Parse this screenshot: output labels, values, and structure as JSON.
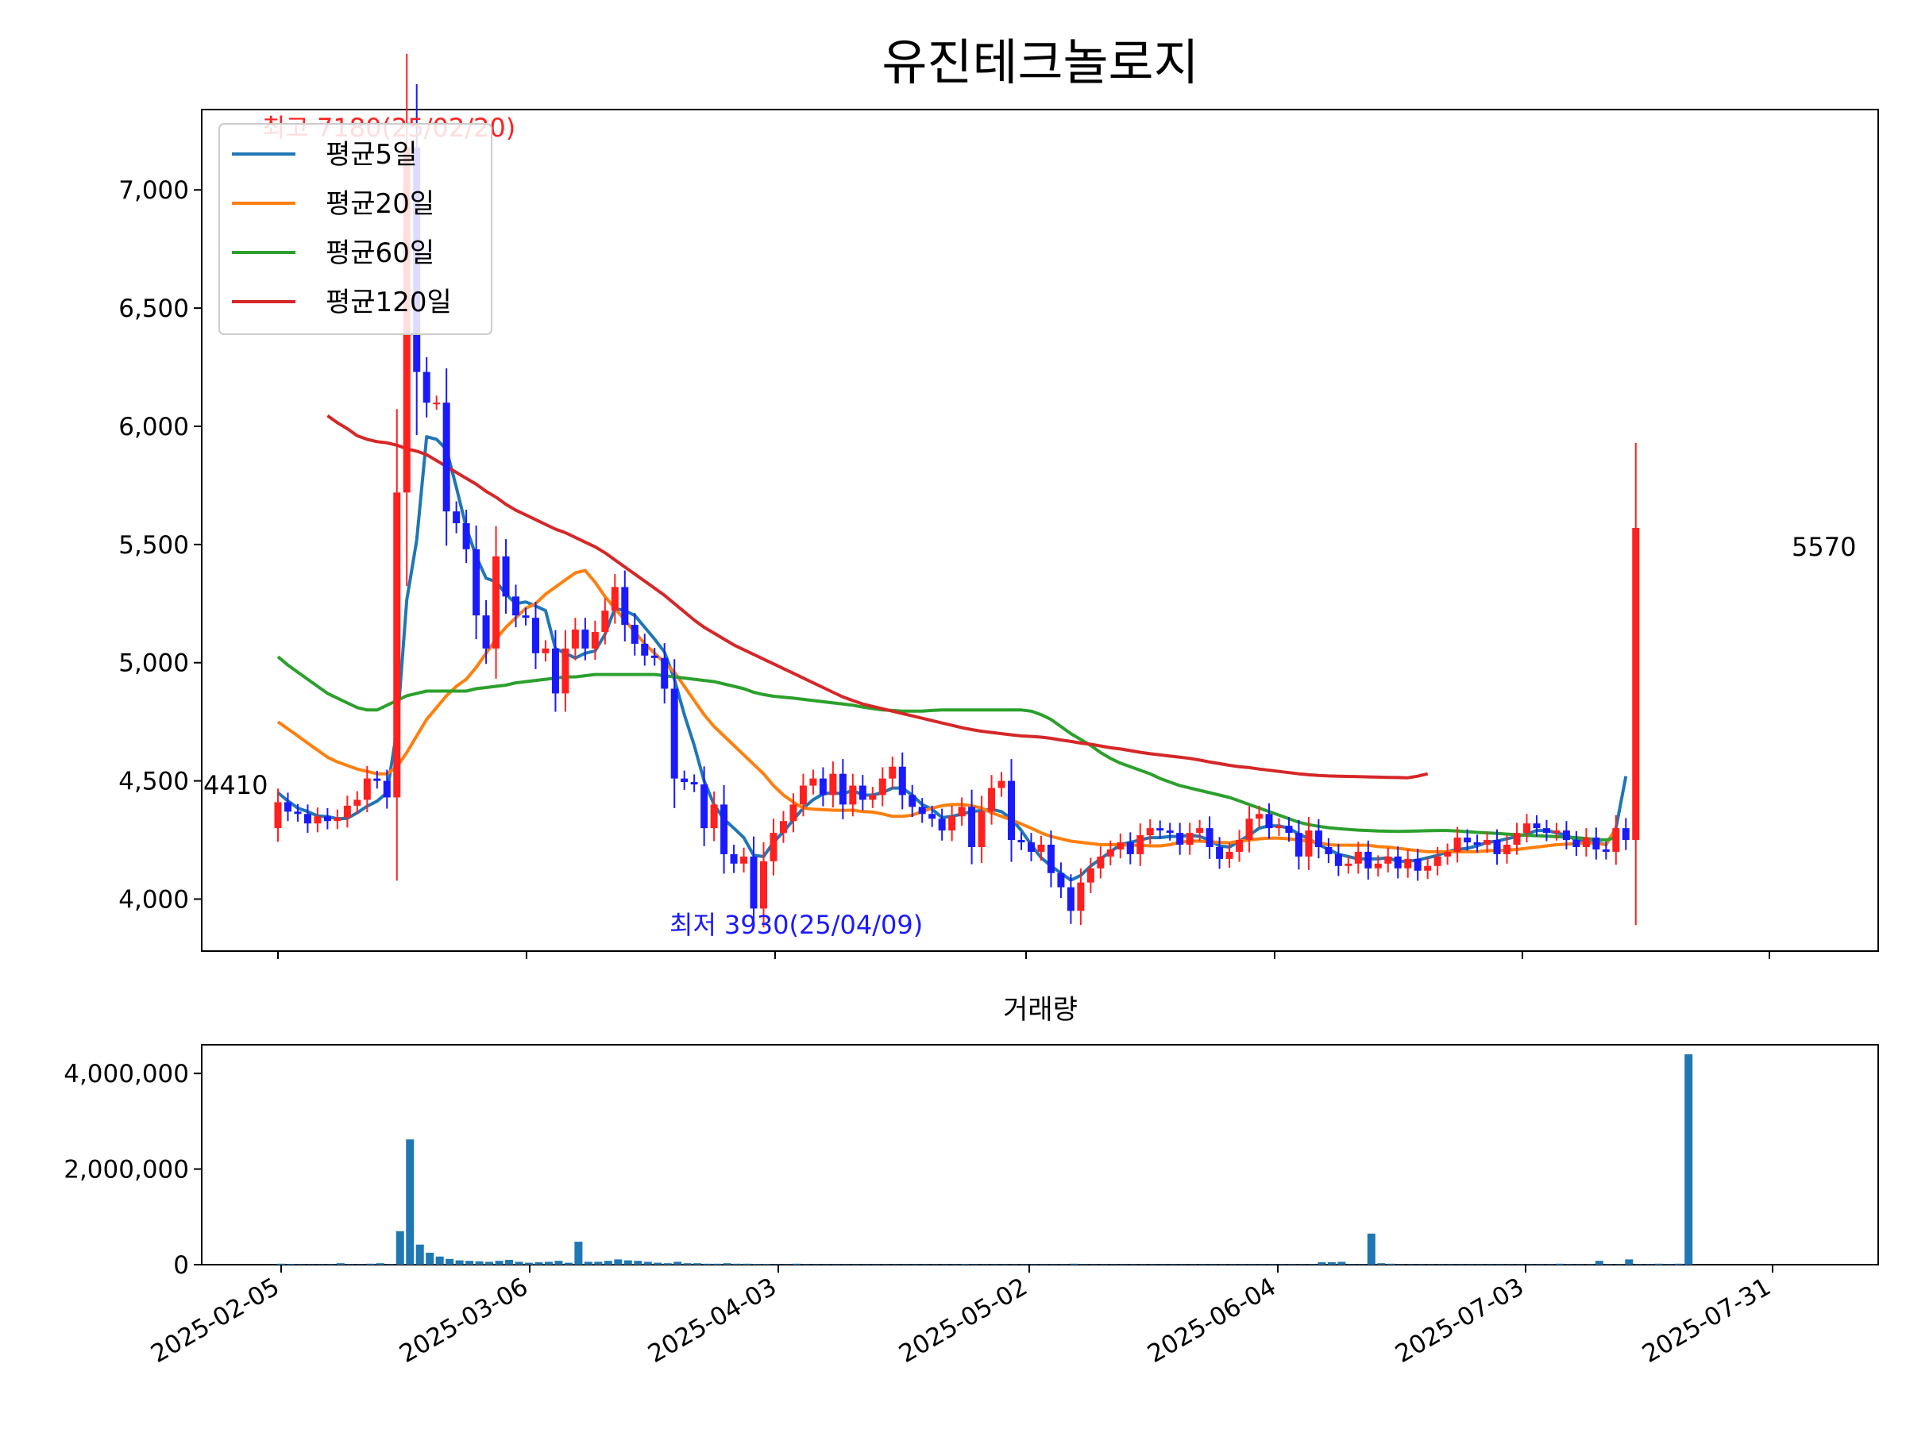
{
  "chart_data": [
    {
      "type": "candlestick",
      "title": "유진테크놀로지",
      "x_ticks": [
        "2025-02-05",
        "2025-03-06",
        "2025-04-03",
        "2025-05-02",
        "2025-06-04",
        "2025-07-03",
        "2025-07-31"
      ],
      "y_ticks": [
        4000,
        4500,
        5000,
        5500,
        6000,
        6500,
        7000
      ],
      "y_tick_labels": [
        "4,000",
        "4,500",
        "5,000",
        "5,500",
        "6,000",
        "6,500",
        "7,000"
      ],
      "ylim": [
        3780,
        7340
      ],
      "grid": false,
      "legend_position": "top-left",
      "up_color": "#ff2020",
      "down_color": "#1a1aff",
      "annotations": {
        "max": "최고 7180(25/02/20)",
        "min": "최저 3930(25/04/09)",
        "first": "4410",
        "last": "5570"
      },
      "close": [
        4410,
        4370,
        4360,
        4320,
        4350,
        4330,
        4345,
        4395,
        4420,
        4510,
        4500,
        4430,
        5720,
        7180,
        6230,
        6100,
        6100,
        5640,
        5590,
        5480,
        5200,
        5060,
        5450,
        5280,
        5200,
        5190,
        5040,
        5060,
        4870,
        5060,
        5140,
        5060,
        5130,
        5220,
        5320,
        5160,
        5080,
        5030,
        5020,
        4890,
        4510,
        4495,
        4485,
        4300,
        4400,
        4190,
        4150,
        4180,
        3960,
        4160,
        4280,
        4330,
        4400,
        4480,
        4510,
        4440,
        4530,
        4400,
        4480,
        4420,
        4440,
        4510,
        4560,
        4440,
        4390,
        4360,
        4340,
        4290,
        4350,
        4390,
        4220,
        4370,
        4470,
        4500,
        4250,
        4240,
        4200,
        4230,
        4110,
        4050,
        3950,
        4070,
        4130,
        4180,
        4210,
        4240,
        4190,
        4270,
        4300,
        4290,
        4280,
        4230,
        4280,
        4300,
        4220,
        4170,
        4200,
        4250,
        4340,
        4360,
        4300,
        4310,
        4280,
        4180,
        4290,
        4220,
        4190,
        4140,
        4150,
        4200,
        4130,
        4150,
        4180,
        4130,
        4170,
        4120,
        4140,
        4180,
        4200,
        4260,
        4240,
        4230,
        4250,
        4190,
        4230,
        4280,
        4320,
        4300,
        4280,
        4290,
        4250,
        4220,
        4260,
        4210,
        4200,
        4300,
        4250,
        5570
      ],
      "series": [
        {
          "name": "평균5일",
          "color": "#1f77b4",
          "start": 0,
          "values": [
            4450,
            4415,
            4385,
            4370,
            4352,
            4349,
            4340,
            4342,
            4365,
            4393,
            4414,
            4450,
            4716,
            5265,
            5518,
            5956,
            5945,
            5902,
            5742,
            5572,
            5450,
            5357,
            5343,
            5290,
            5250,
            5257,
            5240,
            5220,
            5060,
            5040,
            5020,
            5040,
            5050,
            5120,
            5230,
            5220,
            5200,
            5150,
            5100,
            5045,
            4930,
            4780,
            4650,
            4500,
            4400,
            4338,
            4300,
            4260,
            4185,
            4180,
            4240,
            4285,
            4335,
            4385,
            4420,
            4445,
            4450,
            4445,
            4460,
            4440,
            4440,
            4450,
            4470,
            4470,
            4440,
            4400,
            4380,
            4345,
            4350,
            4360,
            4370,
            4375,
            4380,
            4370,
            4340,
            4290,
            4230,
            4175,
            4140,
            4110,
            4080,
            4100,
            4140,
            4170,
            4200,
            4230,
            4240,
            4250,
            4260,
            4260,
            4265,
            4265,
            4270,
            4265,
            4250,
            4225,
            4220,
            4245,
            4270,
            4300,
            4310,
            4310,
            4300,
            4275,
            4255,
            4230,
            4210,
            4190,
            4180,
            4170,
            4170,
            4170,
            4175,
            4160,
            4160,
            4165,
            4175,
            4185,
            4200,
            4210,
            4215,
            4225,
            4240,
            4245,
            4255,
            4265,
            4275,
            4290,
            4290,
            4280,
            4270,
            4250,
            4240,
            4240,
            4230,
            4300,
            4520
          ]
        },
        {
          "name": "평균20일",
          "color": "#ff7f0e",
          "start": 0,
          "values": [
            4750,
            4720,
            4690,
            4660,
            4630,
            4600,
            4580,
            4565,
            4550,
            4540,
            4530,
            4530,
            4560,
            4620,
            4690,
            4760,
            4810,
            4860,
            4900,
            4930,
            4980,
            5040,
            5100,
            5150,
            5190,
            5230,
            5250,
            5290,
            5320,
            5350,
            5380,
            5390,
            5340,
            5280,
            5230,
            5180,
            5130,
            5080,
            5040,
            5000,
            4960,
            4900,
            4840,
            4780,
            4730,
            4690,
            4650,
            4610,
            4570,
            4530,
            4480,
            4440,
            4410,
            4385,
            4380,
            4378,
            4376,
            4375,
            4376,
            4370,
            4368,
            4360,
            4350,
            4350,
            4355,
            4370,
            4385,
            4395,
            4400,
            4400,
            4395,
            4385,
            4365,
            4350,
            4335,
            4318,
            4300,
            4280,
            4265,
            4255,
            4245,
            4240,
            4235,
            4230,
            4230,
            4230,
            4228,
            4228,
            4225,
            4225,
            4230,
            4240,
            4245,
            4245,
            4242,
            4240,
            4238,
            4245,
            4250,
            4255,
            4258,
            4258,
            4255,
            4250,
            4245,
            4238,
            4230,
            4228,
            4228,
            4228,
            4228,
            4222,
            4220,
            4215,
            4210,
            4205,
            4200,
            4200,
            4200,
            4200,
            4200,
            4200,
            4205,
            4205,
            4208,
            4210,
            4215,
            4220,
            4225,
            4230,
            4232,
            4235,
            4238,
            4236,
            4230,
            4300
          ]
        },
        {
          "name": "평균60일",
          "color": "#2ca02c",
          "start": 0,
          "values": [
            5025,
            4990,
            4960,
            4930,
            4900,
            4870,
            4850,
            4830,
            4810,
            4800,
            4800,
            4820,
            4840,
            4860,
            4870,
            4880,
            4880,
            4880,
            4880,
            4880,
            4890,
            4895,
            4900,
            4905,
            4915,
            4920,
            4925,
            4930,
            4935,
            4940,
            4940,
            4945,
            4950,
            4950,
            4950,
            4950,
            4950,
            4950,
            4950,
            4945,
            4940,
            4935,
            4930,
            4925,
            4920,
            4910,
            4900,
            4890,
            4875,
            4865,
            4858,
            4854,
            4850,
            4845,
            4840,
            4835,
            4830,
            4825,
            4820,
            4812,
            4806,
            4800,
            4798,
            4795,
            4795,
            4795,
            4798,
            4800,
            4800,
            4800,
            4800,
            4800,
            4800,
            4800,
            4800,
            4800,
            4795,
            4780,
            4760,
            4730,
            4700,
            4675,
            4650,
            4620,
            4595,
            4575,
            4560,
            4545,
            4530,
            4510,
            4495,
            4480,
            4470,
            4460,
            4450,
            4440,
            4430,
            4415,
            4400,
            4385,
            4370,
            4355,
            4340,
            4325,
            4315,
            4308,
            4302,
            4298,
            4295,
            4292,
            4290,
            4288,
            4287,
            4286,
            4287,
            4288,
            4289,
            4290,
            4290,
            4288,
            4285,
            4282,
            4280,
            4278,
            4275,
            4272,
            4270,
            4268,
            4266,
            4264,
            4262,
            4260,
            4256,
            4252,
            4250,
            4260
          ]
        },
        {
          "name": "평균120일",
          "color": "#d62728",
          "start": 5,
          "values": [
            6045,
            6015,
            5990,
            5960,
            5945,
            5935,
            5930,
            5920,
            5905,
            5895,
            5880,
            5855,
            5830,
            5805,
            5780,
            5755,
            5725,
            5700,
            5670,
            5645,
            5625,
            5605,
            5585,
            5565,
            5550,
            5530,
            5510,
            5490,
            5465,
            5435,
            5405,
            5375,
            5345,
            5315,
            5285,
            5250,
            5215,
            5180,
            5150,
            5125,
            5100,
            5075,
            5055,
            5035,
            5015,
            4995,
            4975,
            4955,
            4935,
            4915,
            4895,
            4875,
            4855,
            4840,
            4825,
            4815,
            4805,
            4795,
            4785,
            4775,
            4765,
            4755,
            4745,
            4735,
            4725,
            4717,
            4710,
            4705,
            4700,
            4695,
            4690,
            4688,
            4685,
            4680,
            4673,
            4667,
            4660,
            4655,
            4648,
            4640,
            4635,
            4628,
            4621,
            4615,
            4610,
            4605,
            4600,
            4595,
            4588,
            4580,
            4573,
            4566,
            4560,
            4556,
            4550,
            4545,
            4540,
            4535,
            4530,
            4526,
            4523,
            4521,
            4520,
            4519,
            4518,
            4517,
            4516,
            4515,
            4514,
            4513,
            4520,
            4530
          ]
        }
      ]
    },
    {
      "type": "bar",
      "title": "거래량",
      "x_ticks": [
        "2025-02-05",
        "2025-03-06",
        "2025-04-03",
        "2025-05-02",
        "2025-06-04",
        "2025-07-03",
        "2025-07-31"
      ],
      "y_ticks": [
        0,
        2000000,
        4000000
      ],
      "y_tick_labels": [
        "0",
        "2,000,000",
        "4,000,000"
      ],
      "ylim": [
        0,
        4600000
      ],
      "color": "#1f77b4",
      "values": [
        20000,
        15000,
        10000,
        10000,
        10000,
        10000,
        30000,
        10000,
        10000,
        20000,
        30000,
        10000,
        700000,
        2620000,
        420000,
        250000,
        170000,
        120000,
        90000,
        80000,
        70000,
        60000,
        80000,
        100000,
        60000,
        40000,
        50000,
        60000,
        80000,
        40000,
        480000,
        60000,
        60000,
        80000,
        110000,
        90000,
        80000,
        60000,
        40000,
        30000,
        60000,
        30000,
        30000,
        20000,
        20000,
        30000,
        20000,
        20000,
        15000,
        15000,
        10000,
        10000,
        20000,
        10000,
        10000,
        10000,
        10000,
        10000,
        10000,
        10000,
        10000,
        10000,
        10000,
        10000,
        10000,
        10000,
        10000,
        10000,
        10000,
        15000,
        10000,
        10000,
        10000,
        10000,
        10000,
        10000,
        10000,
        10000,
        10000,
        10000,
        20000,
        10000,
        10000,
        10000,
        10000,
        10000,
        10000,
        10000,
        10000,
        10000,
        10000,
        10000,
        10000,
        10000,
        10000,
        10000,
        10000,
        10000,
        10000,
        10000,
        10000,
        10000,
        10000,
        10000,
        10000,
        50000,
        50000,
        60000,
        10000,
        10000,
        650000,
        30000,
        20000,
        10000,
        10000,
        10000,
        10000,
        10000,
        10000,
        10000,
        10000,
        10000,
        10000,
        10000,
        10000,
        10000,
        10000,
        10000,
        10000,
        20000,
        10000,
        10000,
        10000,
        80000,
        10000,
        10000,
        110000,
        10000,
        10000,
        20000,
        10000,
        20000,
        4400000
      ]
    }
  ]
}
